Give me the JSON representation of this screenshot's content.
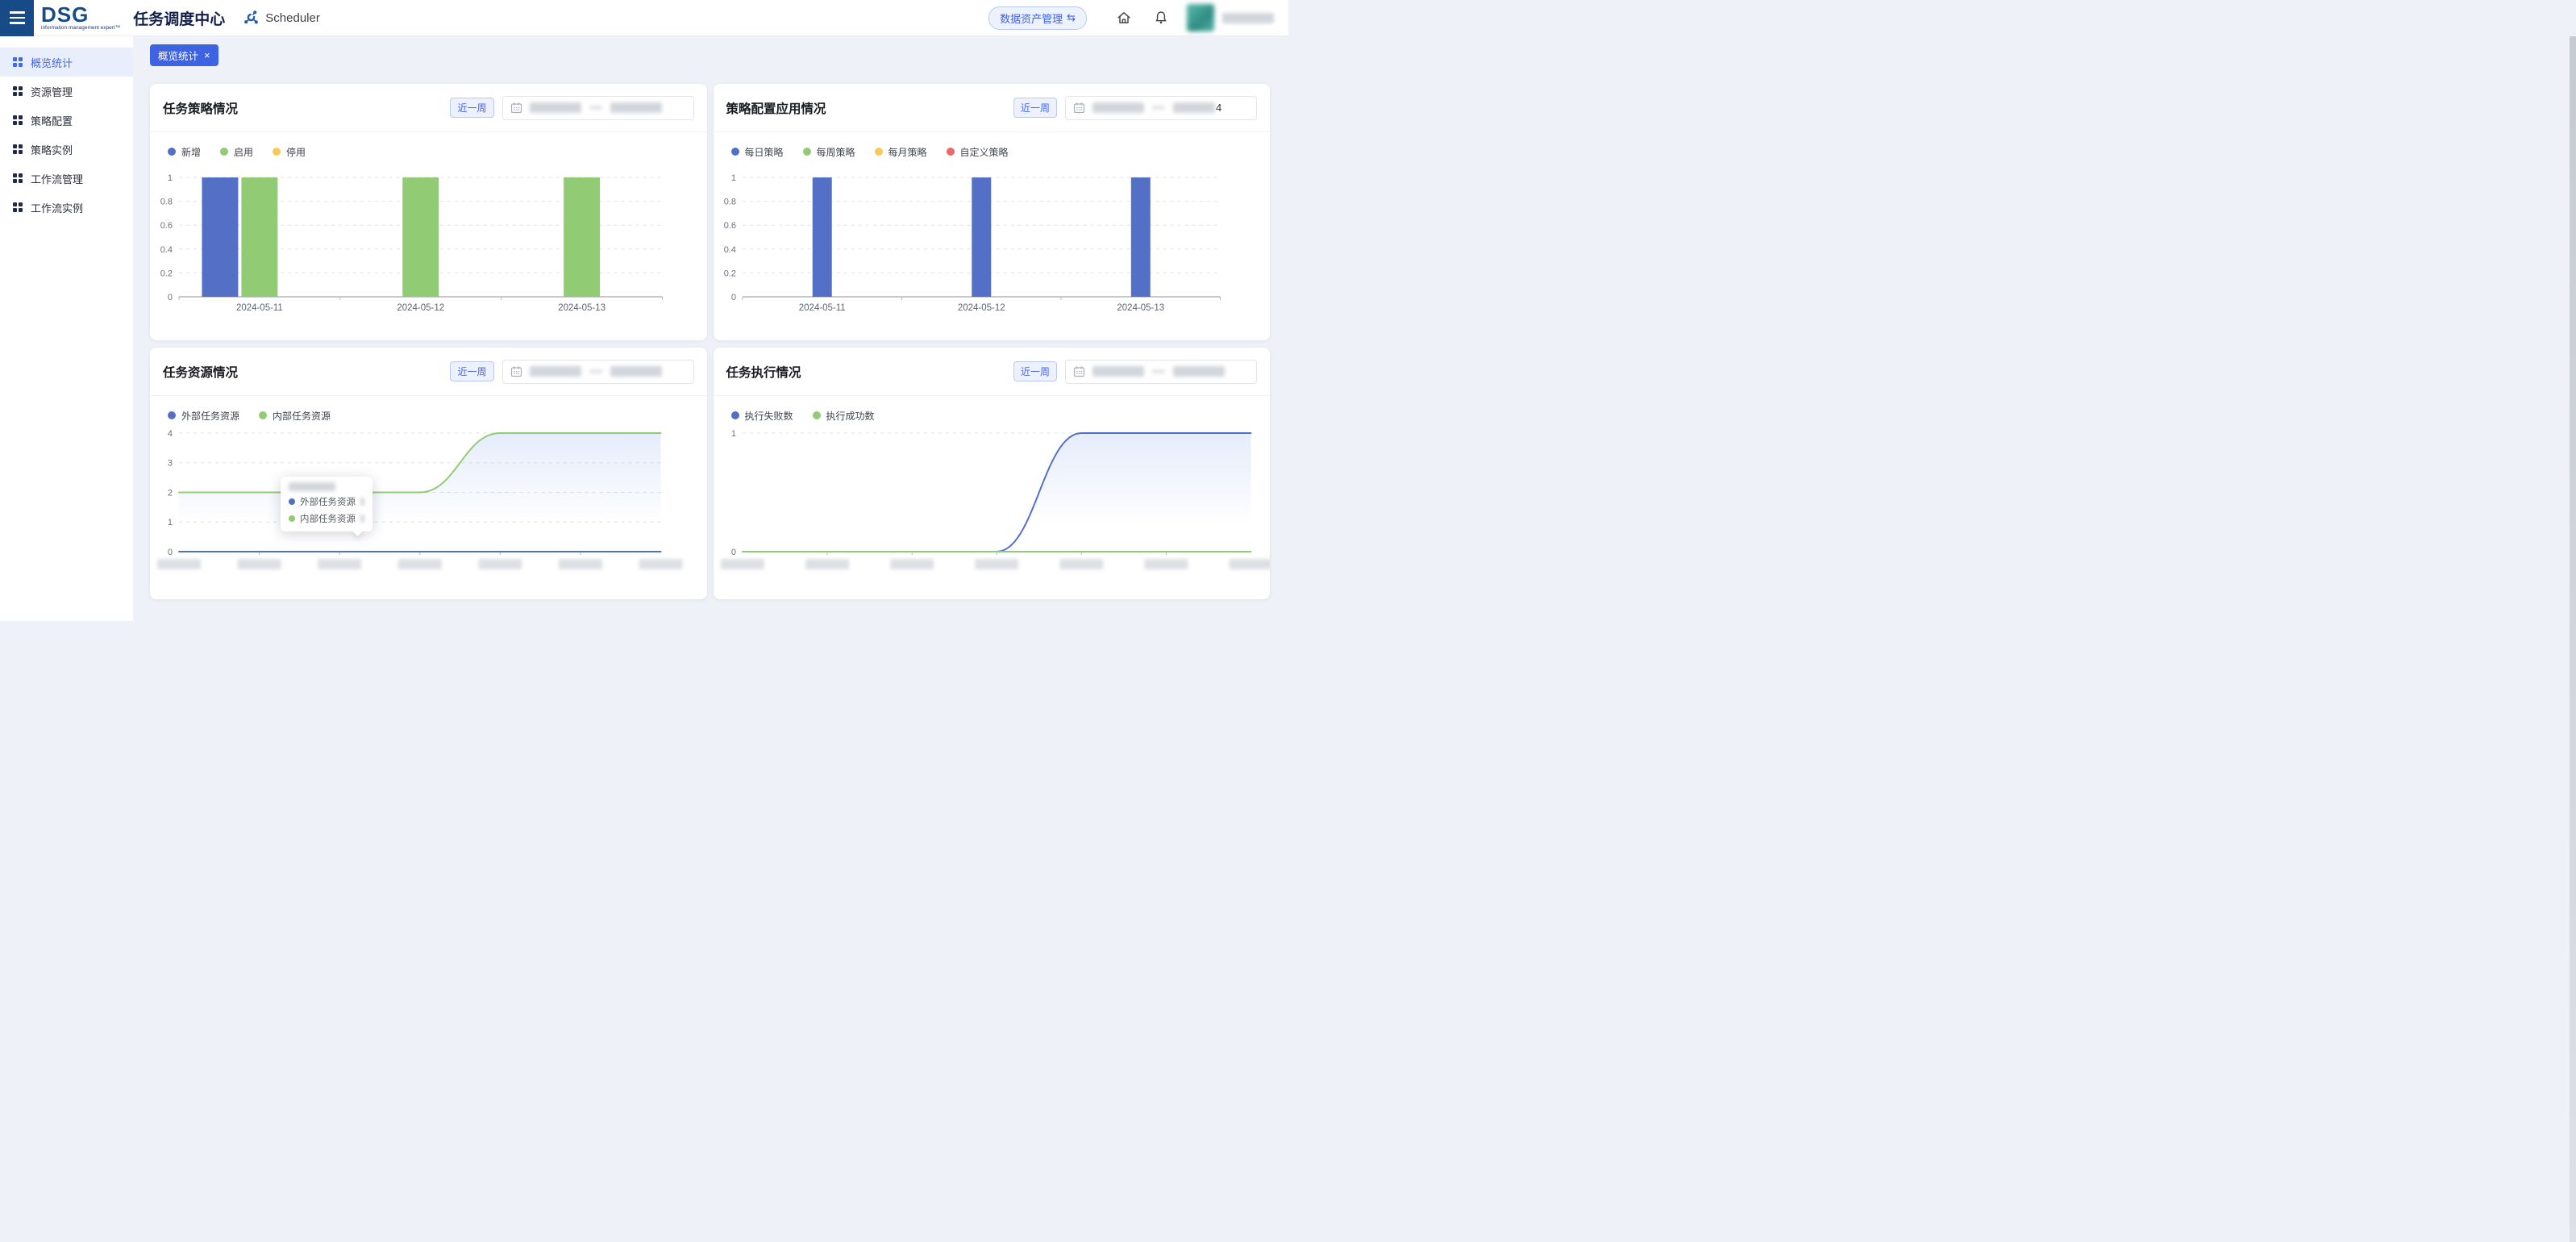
{
  "header": {
    "logo": {
      "text": "DSG",
      "tagline": "information management expert™"
    },
    "app_title": "任务调度中心",
    "scheduler_label": "Scheduler",
    "asset_button": "数据资产管理",
    "asset_button_glyph": "⇆"
  },
  "icons": {
    "hamburger": "menu-bars",
    "scheduler": "node-hub",
    "home": "house-outline",
    "bell": "bell-outline",
    "calendar": "calendar-grid",
    "close": "×",
    "menu_item": "grid-4-squares"
  },
  "sidebar": {
    "items": [
      {
        "label": "概览统计",
        "active": true
      },
      {
        "label": "资源管理",
        "active": false
      },
      {
        "label": "策略配置",
        "active": false
      },
      {
        "label": "策略实例",
        "active": false
      },
      {
        "label": "工作流管理",
        "active": false
      },
      {
        "label": "工作流实例",
        "active": false
      }
    ]
  },
  "tab": {
    "label": "概览统计",
    "close": "×"
  },
  "range_label": "近一周",
  "cards": [
    {
      "date_suffix": "",
      "dates_redacted": true
    },
    {
      "date_suffix": "4",
      "dates_redacted": true
    },
    {
      "date_suffix": "",
      "dates_redacted": true
    },
    {
      "date_suffix": "",
      "dates_redacted": true
    }
  ],
  "tooltip": {
    "date_redacted": true,
    "series": [
      {
        "label": "外部任务资源",
        "color": "#5470c6",
        "value_redacted": true
      },
      {
        "label": "内部任务资源",
        "color": "#91cc75",
        "value_redacted": true
      }
    ]
  },
  "colors": {
    "primary": "#3d63e2",
    "navy": "#174b87",
    "series_blue": "#5470c6",
    "series_green": "#91cc75",
    "series_yellow": "#fac858",
    "series_red": "#ee6666"
  },
  "chart_data": [
    {
      "type": "bar",
      "title": "任务策略情况",
      "categories": [
        "2024-05-11",
        "2024-05-12",
        "2024-05-13"
      ],
      "series": [
        {
          "name": "新增",
          "color": "#5470c6",
          "values": [
            1,
            0,
            0
          ]
        },
        {
          "name": "启用",
          "color": "#91cc75",
          "values": [
            1,
            1,
            1
          ]
        },
        {
          "name": "停用",
          "color": "#fac858",
          "values": [
            0,
            0,
            0
          ]
        }
      ],
      "ylim": [
        0,
        1
      ],
      "yticks": [
        0,
        0.2,
        0.4,
        0.6,
        0.8,
        1
      ],
      "grid": "dashed-horizontal",
      "legend_position": "top-left"
    },
    {
      "type": "bar",
      "title": "策略配置应用情况",
      "categories": [
        "2024-05-11",
        "2024-05-12",
        "2024-05-13"
      ],
      "series": [
        {
          "name": "每日策略",
          "color": "#5470c6",
          "values": [
            1,
            1,
            1
          ]
        },
        {
          "name": "每周策略",
          "color": "#91cc75",
          "values": [
            0,
            0,
            0
          ]
        },
        {
          "name": "每月策略",
          "color": "#fac858",
          "values": [
            0,
            0,
            0
          ]
        },
        {
          "name": "自定义策略",
          "color": "#ee6666",
          "values": [
            0,
            0,
            0
          ]
        }
      ],
      "ylim": [
        0,
        1
      ],
      "yticks": [
        0,
        0.2,
        0.4,
        0.6,
        0.8,
        1
      ],
      "grid": "dashed-horizontal",
      "legend_position": "top-left"
    },
    {
      "type": "line",
      "title": "任务资源情况",
      "x_labels_blurred": 7,
      "series": [
        {
          "name": "外部任务资源",
          "color": "#5470c6",
          "values": [
            0,
            0,
            0,
            0,
            0,
            0,
            0
          ]
        },
        {
          "name": "内部任务资源",
          "color": "#91cc75",
          "values": [
            2,
            2,
            2,
            2,
            4,
            4,
            4
          ]
        }
      ],
      "ylim": [
        0,
        4
      ],
      "yticks": [
        0,
        1,
        2,
        3,
        4
      ],
      "smooth": true,
      "grid": "dashed-horizontal",
      "legend_position": "top-left",
      "tooltip_open": true
    },
    {
      "type": "line",
      "title": "任务执行情况",
      "x_labels_blurred": 7,
      "series": [
        {
          "name": "执行失败数",
          "color": "#5470c6",
          "values": [
            0,
            0,
            0,
            0,
            1,
            1,
            1
          ]
        },
        {
          "name": "执行成功数",
          "color": "#91cc75",
          "values": [
            0,
            0,
            0,
            0,
            0,
            0,
            0
          ]
        }
      ],
      "ylim": [
        0,
        1
      ],
      "yticks": [
        0,
        1
      ],
      "smooth": true,
      "grid": "dashed-horizontal",
      "legend_position": "top-left"
    }
  ]
}
